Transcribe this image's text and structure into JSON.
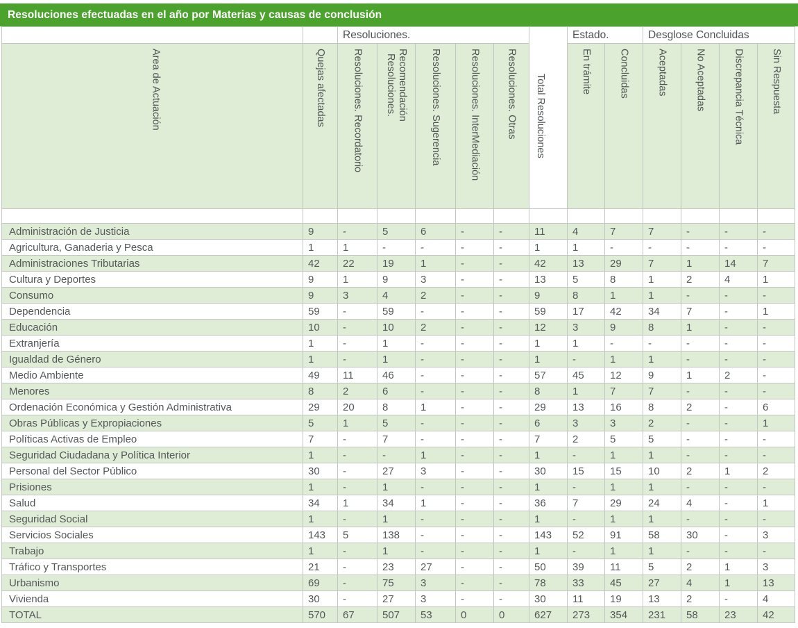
{
  "title": "Resoluciones efectuadas en el año por Materias y causas de conclusión",
  "colors": {
    "accent_green": "#4BA32D",
    "light_green": "#E0EDD6",
    "border_gray": "#C2C6C0",
    "text_gray": "#54575A",
    "header_text": "#4F5254"
  },
  "table": {
    "groups": {
      "resoluciones": "Resoluciones.",
      "estado": "Estado.",
      "desglose": "Desglose Concluidas"
    },
    "columns": [
      "Area de Actuación",
      "Quejas afectadas",
      "Resoluciones. Recordatorio",
      "Resoluciones.\nRecomendación",
      "Resoluciones. Sugerencia",
      "Resoluciones. InterMediación",
      "Resoluciones. Otras",
      "Total Resoluciones",
      "En trámite",
      "Concluidas",
      "Aceptadas",
      "No Aceptadas",
      "Discrepancia Técnica",
      "Sin Respuesta"
    ],
    "rows": [
      {
        "area": "Administración de Justicia",
        "values": [
          "9",
          "-",
          "5",
          "6",
          "-",
          "-",
          "11",
          "4",
          "7",
          "7",
          "-",
          "-",
          "-"
        ]
      },
      {
        "area": "Agricultura, Ganaderia y Pesca",
        "values": [
          "1",
          "1",
          "-",
          "-",
          "-",
          "-",
          "1",
          "1",
          "-",
          "-",
          "-",
          "-",
          "-"
        ]
      },
      {
        "area": "Administraciones Tributarias",
        "values": [
          "42",
          "22",
          "19",
          "1",
          "-",
          "-",
          "42",
          "13",
          "29",
          "7",
          "1",
          "14",
          "7"
        ]
      },
      {
        "area": "Cultura y Deportes",
        "values": [
          "9",
          "1",
          "9",
          "3",
          "-",
          "-",
          "13",
          "5",
          "8",
          "1",
          "2",
          "4",
          "1"
        ]
      },
      {
        "area": "Consumo",
        "values": [
          "9",
          "3",
          "4",
          "2",
          "-",
          "-",
          "9",
          "8",
          "1",
          "1",
          "-",
          "-",
          "-"
        ]
      },
      {
        "area": "Dependencia",
        "values": [
          "59",
          "-",
          "59",
          "-",
          "-",
          "-",
          "59",
          "17",
          "42",
          "34",
          "7",
          "-",
          "1"
        ]
      },
      {
        "area": "Educación",
        "values": [
          "10",
          "-",
          "10",
          "2",
          "-",
          "-",
          "12",
          "3",
          "9",
          "8",
          "1",
          "-",
          "-"
        ]
      },
      {
        "area": "Extranjería",
        "values": [
          "1",
          "-",
          "1",
          "-",
          "-",
          "-",
          "1",
          "1",
          "-",
          "-",
          "-",
          "-",
          "-"
        ]
      },
      {
        "area": "Igualdad de Género",
        "values": [
          "1",
          "-",
          "1",
          "-",
          "-",
          "-",
          "1",
          "-",
          "1",
          "1",
          "-",
          "-",
          "-"
        ]
      },
      {
        "area": "Medio Ambiente",
        "values": [
          "49",
          "11",
          "46",
          "-",
          "-",
          "-",
          "57",
          "45",
          "12",
          "9",
          "1",
          "2",
          "-"
        ]
      },
      {
        "area": "Menores",
        "values": [
          "8",
          "2",
          "6",
          "-",
          "-",
          "-",
          "8",
          "1",
          "7",
          "7",
          "-",
          "-",
          "-"
        ]
      },
      {
        "area": "Ordenación Económica y Gestión Administrativa",
        "values": [
          "29",
          "20",
          "8",
          "1",
          "-",
          "-",
          "29",
          "13",
          "16",
          "8",
          "2",
          "-",
          "6"
        ]
      },
      {
        "area": "Obras Públicas y Expropiaciones",
        "values": [
          "5",
          "1",
          "5",
          "-",
          "-",
          "-",
          "6",
          "3",
          "3",
          "2",
          "-",
          "-",
          "1"
        ]
      },
      {
        "area": "Políticas Activas de Empleo",
        "values": [
          "7",
          "-",
          "7",
          "-",
          "-",
          "-",
          "7",
          "2",
          "5",
          "5",
          "-",
          "-",
          "-"
        ]
      },
      {
        "area": "Seguridad Ciudadana y Política Interior",
        "values": [
          "1",
          "-",
          "-",
          "1",
          "-",
          "-",
          "1",
          "-",
          "1",
          "1",
          "-",
          "-",
          "-"
        ]
      },
      {
        "area": "Personal del Sector Público",
        "values": [
          "30",
          "-",
          "27",
          "3",
          "-",
          "-",
          "30",
          "15",
          "15",
          "10",
          "2",
          "1",
          "2"
        ]
      },
      {
        "area": "Prisiones",
        "values": [
          "1",
          "-",
          "1",
          "-",
          "-",
          "-",
          "1",
          "-",
          "1",
          "1",
          "-",
          "-",
          "-"
        ]
      },
      {
        "area": "Salud",
        "values": [
          "34",
          "1",
          "34",
          "1",
          "-",
          "-",
          "36",
          "7",
          "29",
          "24",
          "4",
          "-",
          "1"
        ]
      },
      {
        "area": "Seguridad Social",
        "values": [
          "1",
          "-",
          "1",
          "-",
          "-",
          "-",
          "1",
          "-",
          "1",
          "1",
          "-",
          "-",
          "-"
        ]
      },
      {
        "area": "Servicios Sociales",
        "values": [
          "143",
          "5",
          "138",
          "-",
          "-",
          "-",
          "143",
          "52",
          "91",
          "58",
          "30",
          "-",
          "3"
        ]
      },
      {
        "area": "Trabajo",
        "values": [
          "1",
          "-",
          "1",
          "-",
          "-",
          "-",
          "1",
          "-",
          "1",
          "1",
          "-",
          "-",
          "-"
        ]
      },
      {
        "area": "Tráfico y Transportes",
        "values": [
          "21",
          "-",
          "23",
          "27",
          "-",
          "-",
          "50",
          "39",
          "11",
          "5",
          "2",
          "1",
          "3"
        ]
      },
      {
        "area": "Urbanismo",
        "values": [
          "69",
          "-",
          "75",
          "3",
          "-",
          "-",
          "78",
          "33",
          "45",
          "27",
          "4",
          "1",
          "13"
        ]
      },
      {
        "area": "Vivienda",
        "values": [
          "30",
          "-",
          "27",
          "3",
          "-",
          "-",
          "30",
          "11",
          "19",
          "13",
          "2",
          "-",
          "4"
        ]
      },
      {
        "area": "TOTAL",
        "values": [
          "570",
          "67",
          "507",
          "53",
          "0",
          "0",
          "627",
          "273",
          "354",
          "231",
          "58",
          "23",
          "42"
        ]
      }
    ]
  }
}
